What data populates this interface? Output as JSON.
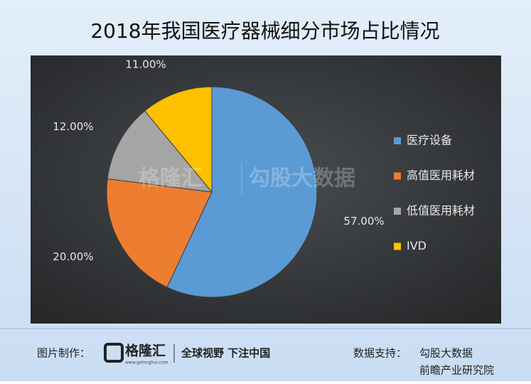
{
  "chart_data": {
    "type": "pie",
    "title": "2018年我国医疗器械细分市场占比情况",
    "categories": [
      "医疗设备",
      "高值医用耗材",
      "低值医用耗材",
      "IVD"
    ],
    "values": [
      57,
      20,
      12,
      11
    ],
    "value_labels": [
      "57.00%",
      "20.00%",
      "12.00%",
      "11.00%"
    ],
    "colors": [
      "#5b9bd5",
      "#ed7d31",
      "#a5a5a5",
      "#ffc000"
    ],
    "legend": "right"
  },
  "watermark": [
    "格隆汇",
    "勾股大数据"
  ],
  "footer": {
    "made_by_label": "图片制作：",
    "brand": "格隆汇",
    "brand_url": "www.gelonghui.com",
    "slogan": "全球视野 下注中国",
    "source_label": "数据支持：",
    "sources": [
      "勾股大数据",
      "前瞻产业研究院"
    ]
  }
}
